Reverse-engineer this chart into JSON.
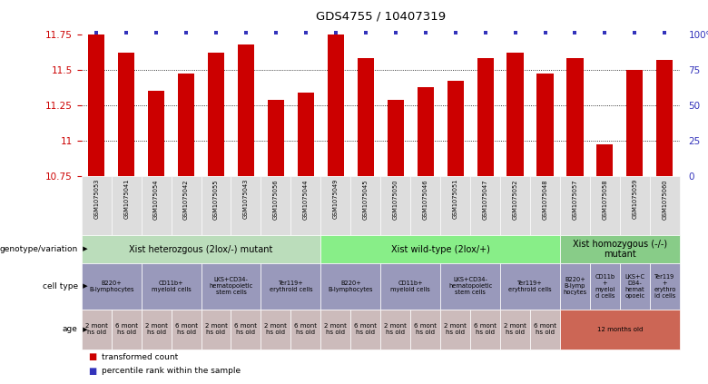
{
  "title": "GDS4755 / 10407319",
  "samples": [
    "GSM1075053",
    "GSM1075041",
    "GSM1075054",
    "GSM1075042",
    "GSM1075055",
    "GSM1075043",
    "GSM1075056",
    "GSM1075044",
    "GSM1075049",
    "GSM1075045",
    "GSM1075050",
    "GSM1075046",
    "GSM1075051",
    "GSM1075047",
    "GSM1075052",
    "GSM1075048",
    "GSM1075057",
    "GSM1075058",
    "GSM1075059",
    "GSM1075060"
  ],
  "bar_values": [
    11.75,
    11.62,
    11.35,
    11.47,
    11.62,
    11.68,
    11.29,
    11.34,
    11.75,
    11.58,
    11.29,
    11.38,
    11.42,
    11.58,
    11.62,
    11.47,
    11.58,
    10.97,
    11.5,
    11.57
  ],
  "percentile_values": [
    100,
    100,
    100,
    100,
    100,
    100,
    100,
    100,
    100,
    100,
    100,
    100,
    100,
    100,
    100,
    100,
    100,
    100,
    100,
    100
  ],
  "ymin": 10.75,
  "ymax": 11.75,
  "yticks": [
    10.75,
    11.0,
    11.25,
    11.5,
    11.75
  ],
  "ytick_labels": [
    "10.75",
    "11",
    "11.25",
    "11.5",
    "11.75"
  ],
  "bar_color": "#cc0000",
  "percentile_color": "#3333bb",
  "background_color": "#ffffff",
  "xtick_bg_color": "#dddddd",
  "genotype_groups": [
    {
      "text": "Xist heterozgous (2lox/-) mutant",
      "start": 0,
      "end": 8,
      "color": "#bbddbb"
    },
    {
      "text": "Xist wild-type (2lox/+)",
      "start": 8,
      "end": 16,
      "color": "#88ee88"
    },
    {
      "text": "Xist homozygous (-/-)\nmutant",
      "start": 16,
      "end": 20,
      "color": "#88cc88"
    }
  ],
  "cell_type_groups": [
    {
      "text": "B220+\nB-lymphocytes",
      "start": 0,
      "end": 2,
      "color": "#9999bb"
    },
    {
      "text": "CD11b+\nmyeloid cells",
      "start": 2,
      "end": 4,
      "color": "#9999bb"
    },
    {
      "text": "LKS+CD34-\nhematopoietic\nstem cells",
      "start": 4,
      "end": 6,
      "color": "#9999bb"
    },
    {
      "text": "Ter119+\nerythroid cells",
      "start": 6,
      "end": 8,
      "color": "#9999bb"
    },
    {
      "text": "B220+\nB-lymphocytes",
      "start": 8,
      "end": 10,
      "color": "#9999bb"
    },
    {
      "text": "CD11b+\nmyeloid cells",
      "start": 10,
      "end": 12,
      "color": "#9999bb"
    },
    {
      "text": "LKS+CD34-\nhematopoietic\nstem cells",
      "start": 12,
      "end": 14,
      "color": "#9999bb"
    },
    {
      "text": "Ter119+\nerythroid cells",
      "start": 14,
      "end": 16,
      "color": "#9999bb"
    },
    {
      "text": "B220+\nB-lymp\nhocytes",
      "start": 16,
      "end": 17,
      "color": "#9999bb"
    },
    {
      "text": "CD11b\n+\nmyeloi\nd cells",
      "start": 17,
      "end": 18,
      "color": "#9999bb"
    },
    {
      "text": "LKS+C\nD34-\nhemat\nopoeic",
      "start": 18,
      "end": 19,
      "color": "#9999bb"
    },
    {
      "text": "Ter119\n+\nerythro\nid cells",
      "start": 19,
      "end": 20,
      "color": "#9999bb"
    }
  ],
  "age_groups": [
    {
      "text": "2 mont\nhs old",
      "start": 0,
      "end": 1,
      "color": "#ccbbbb"
    },
    {
      "text": "6 mont\nhs old",
      "start": 1,
      "end": 2,
      "color": "#ccbbbb"
    },
    {
      "text": "2 mont\nhs old",
      "start": 2,
      "end": 3,
      "color": "#ccbbbb"
    },
    {
      "text": "6 mont\nhs old",
      "start": 3,
      "end": 4,
      "color": "#ccbbbb"
    },
    {
      "text": "2 mont\nhs old",
      "start": 4,
      "end": 5,
      "color": "#ccbbbb"
    },
    {
      "text": "6 mont\nhs old",
      "start": 5,
      "end": 6,
      "color": "#ccbbbb"
    },
    {
      "text": "2 mont\nhs old",
      "start": 6,
      "end": 7,
      "color": "#ccbbbb"
    },
    {
      "text": "6 mont\nhs old",
      "start": 7,
      "end": 8,
      "color": "#ccbbbb"
    },
    {
      "text": "2 mont\nhs old",
      "start": 8,
      "end": 9,
      "color": "#ccbbbb"
    },
    {
      "text": "6 mont\nhs old",
      "start": 9,
      "end": 10,
      "color": "#ccbbbb"
    },
    {
      "text": "2 mont\nhs old",
      "start": 10,
      "end": 11,
      "color": "#ccbbbb"
    },
    {
      "text": "6 mont\nhs old",
      "start": 11,
      "end": 12,
      "color": "#ccbbbb"
    },
    {
      "text": "2 mont\nhs old",
      "start": 12,
      "end": 13,
      "color": "#ccbbbb"
    },
    {
      "text": "6 mont\nhs old",
      "start": 13,
      "end": 14,
      "color": "#ccbbbb"
    },
    {
      "text": "2 mont\nhs old",
      "start": 14,
      "end": 15,
      "color": "#ccbbbb"
    },
    {
      "text": "6 mont\nhs old",
      "start": 15,
      "end": 16,
      "color": "#ccbbbb"
    },
    {
      "text": "12 months old",
      "start": 16,
      "end": 20,
      "color": "#cc6655"
    }
  ],
  "legend_items": [
    {
      "color": "#cc0000",
      "label": "transformed count"
    },
    {
      "color": "#3333bb",
      "label": "percentile rank within the sample"
    }
  ],
  "row_labels": [
    "genotype/variation",
    "cell type",
    "age"
  ]
}
